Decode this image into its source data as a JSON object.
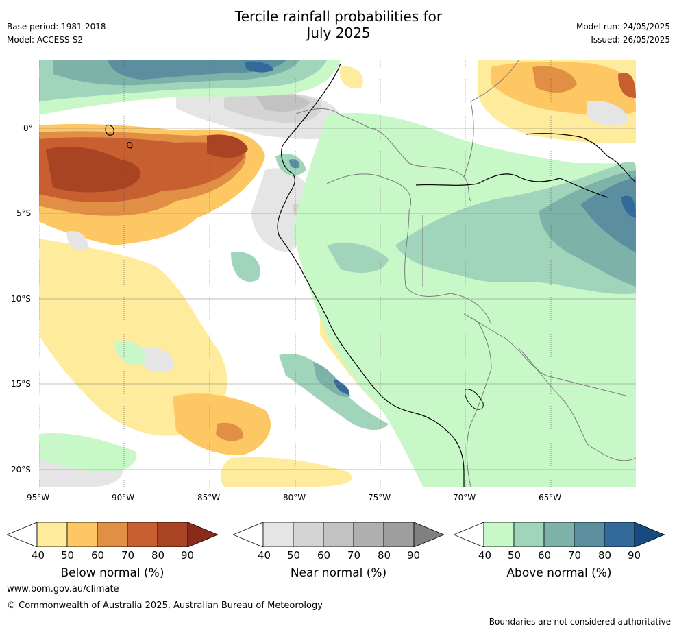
{
  "header": {
    "title_line1": "Tercile rainfall probabilities for",
    "title_line2": "July 2025",
    "base_period": "Base period: 1981-2018",
    "model": "Model: ACCESS-S2",
    "model_run": "Model run: 24/05/2025",
    "issued": "Issued: 26/05/2025"
  },
  "map": {
    "lat_labels": [
      "0°",
      "5°S",
      "10°S",
      "15°S",
      "20°S"
    ],
    "lon_labels": [
      "95°W",
      "90°W",
      "85°W",
      "80°W",
      "75°W",
      "70°W",
      "65°W"
    ],
    "ocean_color": "#ffffff"
  },
  "colorbars": [
    {
      "label": "Below normal (%)",
      "ticks": [
        "40",
        "50",
        "60",
        "70",
        "80",
        "90"
      ],
      "colors": [
        "#ffffff",
        "#ffeb9c",
        "#fdc863",
        "#e08f45",
        "#c85f31",
        "#a84424",
        "#8a2a1a"
      ]
    },
    {
      "label": "Near normal (%)",
      "ticks": [
        "40",
        "50",
        "60",
        "70",
        "80",
        "90"
      ],
      "colors": [
        "#ffffff",
        "#e5e5e5",
        "#d4d4d4",
        "#c2c2c2",
        "#b0b0b0",
        "#9e9e9e",
        "#808080"
      ]
    },
    {
      "label": "Above normal (%)",
      "ticks": [
        "40",
        "50",
        "60",
        "70",
        "80",
        "90"
      ],
      "colors": [
        "#ffffff",
        "#c8f7c8",
        "#a1d5bb",
        "#7db2a8",
        "#5b8fa0",
        "#336a9a",
        "#174a80"
      ]
    }
  ],
  "footer": {
    "website": "www.bom.gov.au/climate",
    "copyright": "© Commonwealth of Australia 2025, Australian Bureau of Meteorology",
    "disclaimer": "Boundaries are not considered authoritative"
  }
}
